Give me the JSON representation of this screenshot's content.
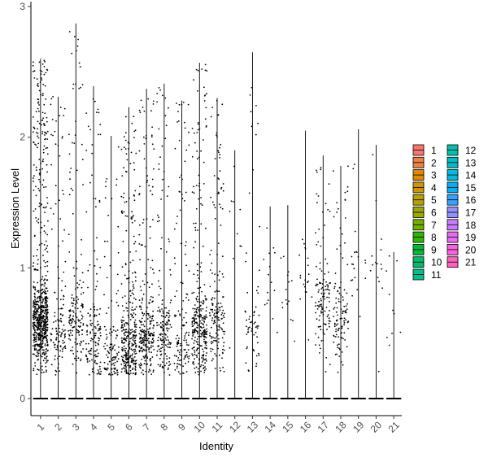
{
  "chart_data": {
    "type": "violin",
    "xlabel": "Identity",
    "ylabel": "Expression Level",
    "ylim": [
      -0.15,
      3.0
    ],
    "yticks": [
      0,
      1,
      2,
      3
    ],
    "categories": [
      "1",
      "2",
      "3",
      "4",
      "5",
      "6",
      "7",
      "8",
      "9",
      "10",
      "11",
      "12",
      "13",
      "14",
      "15",
      "16",
      "17",
      "18",
      "19",
      "20",
      "21"
    ],
    "max_values": [
      2.6,
      2.31,
      2.87,
      2.39,
      2.01,
      2.23,
      2.37,
      2.41,
      2.28,
      2.57,
      2.3,
      1.9,
      2.65,
      1.47,
      1.48,
      2.05,
      1.86,
      1.78,
      2.06,
      1.94,
      1.12
    ],
    "point_counts": [
      700,
      130,
      160,
      140,
      110,
      330,
      260,
      160,
      130,
      300,
      170,
      10,
      60,
      15,
      15,
      20,
      120,
      110,
      20,
      15,
      10
    ],
    "point_center": [
      0.58,
      0.5,
      0.55,
      0.4,
      0.3,
      0.4,
      0.48,
      0.5,
      0.42,
      0.5,
      0.6,
      1.2,
      0.5,
      0.9,
      0.7,
      1.0,
      0.7,
      0.6,
      0.9,
      1.0,
      0.7
    ],
    "legend": {
      "items": [
        {
          "label": "1",
          "color": "#F8766D"
        },
        {
          "label": "2",
          "color": "#EE8044"
        },
        {
          "label": "3",
          "color": "#E18A00"
        },
        {
          "label": "4",
          "color": "#CE9700"
        },
        {
          "label": "5",
          "color": "#B7A100"
        },
        {
          "label": "6",
          "color": "#9AAA00"
        },
        {
          "label": "7",
          "color": "#72B000"
        },
        {
          "label": "8",
          "color": "#2FB600"
        },
        {
          "label": "9",
          "color": "#00BA38"
        },
        {
          "label": "10",
          "color": "#00BE6C"
        },
        {
          "label": "11",
          "color": "#00C08D"
        },
        {
          "label": "12",
          "color": "#00C1AB"
        },
        {
          "label": "13",
          "color": "#00BFC4"
        },
        {
          "label": "14",
          "color": "#00BAE0"
        },
        {
          "label": "15",
          "color": "#00B0F6"
        },
        {
          "label": "16",
          "color": "#35A2FF"
        },
        {
          "label": "17",
          "color": "#9590FF"
        },
        {
          "label": "18",
          "color": "#C77CFF"
        },
        {
          "label": "19",
          "color": "#E76BF3"
        },
        {
          "label": "20",
          "color": "#FA62DB"
        },
        {
          "label": "21",
          "color": "#FF62BC"
        }
      ]
    },
    "grid": false,
    "legend_position": "right"
  }
}
